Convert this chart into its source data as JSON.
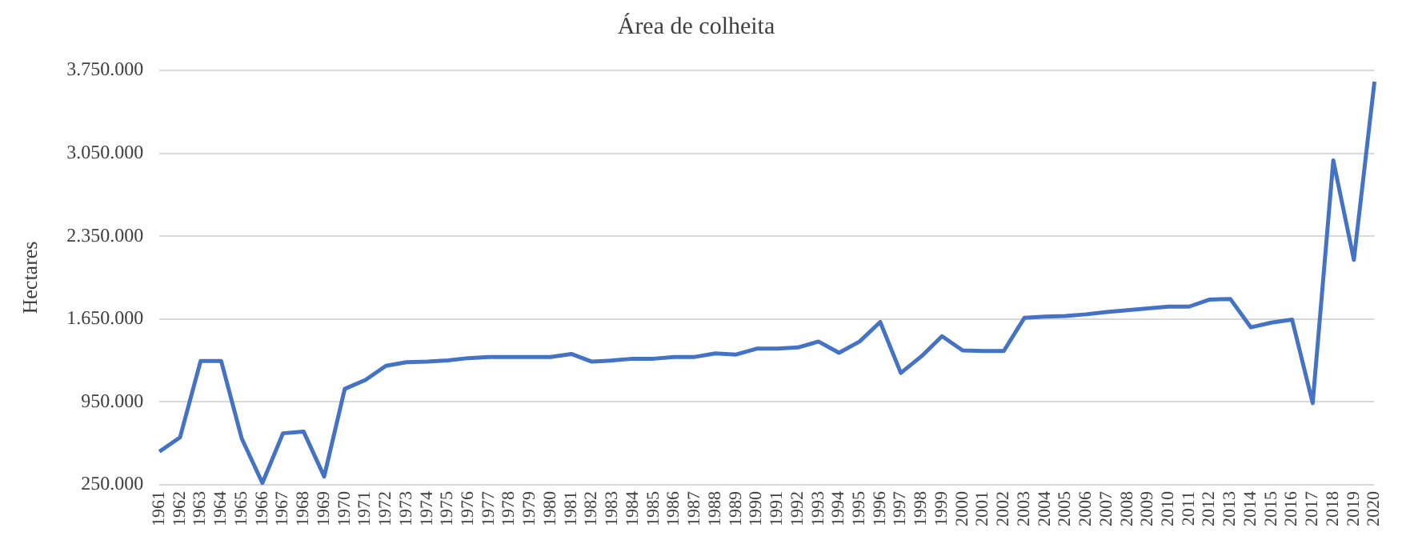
{
  "chart_data": {
    "type": "line",
    "title": "Área de colheita",
    "ylabel": "Hectares",
    "categories": [
      "1961",
      "1962",
      "1963",
      "1964",
      "1965",
      "1966",
      "1967",
      "1968",
      "1969",
      "1970",
      "1971",
      "1972",
      "1973",
      "1974",
      "1975",
      "1976",
      "1977",
      "1978",
      "1979",
      "1980",
      "1981",
      "1982",
      "1983",
      "1984",
      "1985",
      "1986",
      "1987",
      "1988",
      "1989",
      "1990",
      "1991",
      "1992",
      "1993",
      "1994",
      "1995",
      "1996",
      "1997",
      "1998",
      "1999",
      "2000",
      "2001",
      "2002",
      "2003",
      "2004",
      "2005",
      "2006",
      "2007",
      "2008",
      "2009",
      "2010",
      "2011",
      "2012",
      "2013",
      "2014",
      "2015",
      "2016",
      "2017",
      "2018",
      "2019",
      "2020"
    ],
    "series": [
      {
        "color": "#4472c4",
        "values": [
          530000,
          650000,
          1295000,
          1295000,
          640000,
          265000,
          685000,
          700000,
          320000,
          1060000,
          1135000,
          1255000,
          1285000,
          1290000,
          1300000,
          1320000,
          1330000,
          1330000,
          1330000,
          1330000,
          1355000,
          1290000,
          1300000,
          1315000,
          1315000,
          1330000,
          1330000,
          1360000,
          1350000,
          1400000,
          1400000,
          1410000,
          1460000,
          1365000,
          1460000,
          1625000,
          1195000,
          1335000,
          1505000,
          1385000,
          1380000,
          1380000,
          1660000,
          1670000,
          1675000,
          1690000,
          1710000,
          1725000,
          1740000,
          1755000,
          1755000,
          1815000,
          1820000,
          1580000,
          1620000,
          1645000,
          940000,
          2990000,
          2150000,
          3655000
        ]
      }
    ],
    "ylim": [
      250000,
      3750000
    ],
    "yticks": [
      {
        "value": 250000,
        "label": "250.000"
      },
      {
        "value": 950000,
        "label": "950.000"
      },
      {
        "value": 1650000,
        "label": "1.650.000"
      },
      {
        "value": 2350000,
        "label": "2.350.000"
      },
      {
        "value": 3050000,
        "label": "3.050.000"
      },
      {
        "value": 3750000,
        "label": "3.750.000"
      }
    ],
    "grid": "y",
    "legend": false,
    "marker": "none",
    "line_style": "solid"
  }
}
